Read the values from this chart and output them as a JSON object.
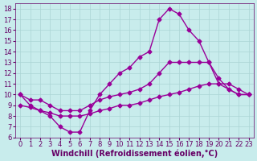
{
  "xlabel": "Windchill (Refroidissement éolien,°C)",
  "xlim": [
    -0.5,
    23.5
  ],
  "ylim": [
    6,
    18.5
  ],
  "xticks": [
    0,
    1,
    2,
    3,
    4,
    5,
    6,
    7,
    8,
    9,
    10,
    11,
    12,
    13,
    14,
    15,
    16,
    17,
    18,
    19,
    20,
    21,
    22,
    23
  ],
  "yticks": [
    6,
    7,
    8,
    9,
    10,
    11,
    12,
    13,
    14,
    15,
    16,
    17,
    18
  ],
  "background_color": "#c8ecec",
  "grid_color": "#aad4d4",
  "line_color": "#990099",
  "line1_x": [
    0,
    1,
    2,
    3,
    4,
    5,
    6,
    7,
    8,
    9,
    10,
    11,
    12,
    13,
    14,
    15,
    16,
    17,
    18,
    19,
    20,
    21,
    22,
    23
  ],
  "line1_y": [
    10,
    9,
    8.5,
    8,
    7,
    6.5,
    6.5,
    8.5,
    10,
    11,
    12,
    12.5,
    13.5,
    14,
    17,
    18,
    17.5,
    16,
    15,
    13,
    11,
    10.5,
    10,
    10
  ],
  "line2_x": [
    0,
    1,
    2,
    3,
    4,
    5,
    6,
    7,
    8,
    9,
    10,
    11,
    12,
    13,
    14,
    15,
    16,
    17,
    18,
    19,
    20,
    21,
    22,
    23
  ],
  "line2_y": [
    10,
    9.5,
    9.5,
    9,
    8.5,
    8.5,
    8.5,
    9,
    9.5,
    9.8,
    10,
    10.2,
    10.5,
    11,
    12,
    13,
    13,
    13,
    13,
    13,
    11.5,
    10.5,
    10,
    10
  ],
  "line3_x": [
    0,
    1,
    2,
    3,
    4,
    5,
    6,
    7,
    8,
    9,
    10,
    11,
    12,
    13,
    14,
    15,
    16,
    17,
    18,
    19,
    20,
    21,
    22,
    23
  ],
  "line3_y": [
    9,
    8.8,
    8.5,
    8.3,
    8,
    8,
    8,
    8.2,
    8.5,
    8.7,
    9,
    9,
    9.2,
    9.5,
    9.8,
    10,
    10.2,
    10.5,
    10.8,
    11,
    11,
    11,
    10.5,
    10
  ],
  "marker": "D",
  "marker_size": 2.5,
  "line_width": 1.0,
  "tick_fontsize": 6,
  "label_fontsize": 7
}
